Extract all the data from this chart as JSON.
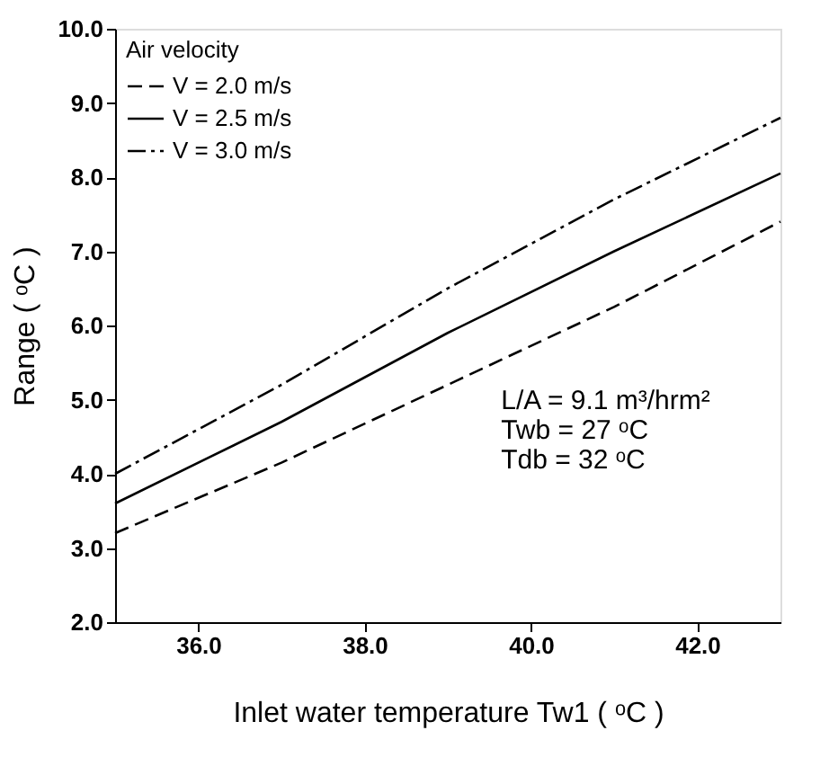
{
  "chart_data": {
    "type": "line",
    "xlabel": "Inlet water temperature Tw1 ( ᵒC )",
    "ylabel": "Range ( ᵒC )",
    "legend_title": "Air velocity",
    "x": [
      35,
      37,
      39,
      41,
      43
    ],
    "series": [
      {
        "name": "V = 2.0 m/s",
        "color": "#000000",
        "line_style": "dashed",
        "values": [
          3.2,
          4.15,
          5.2,
          6.25,
          7.4
        ]
      },
      {
        "name": "V = 2.5 m/s",
        "color": "#000000",
        "line_style": "solid",
        "values": [
          3.6,
          4.7,
          5.9,
          7.0,
          8.05
        ]
      },
      {
        "name": "V = 3.0 m/s",
        "color": "#000000",
        "line_style": "dashdot",
        "values": [
          4.0,
          5.2,
          6.5,
          7.7,
          8.8
        ]
      }
    ],
    "xlim": [
      35,
      43
    ],
    "xticks": [
      {
        "value": 36,
        "label": "36.0"
      },
      {
        "value": 38,
        "label": "38.0"
      },
      {
        "value": 40,
        "label": "40.0"
      },
      {
        "value": 42,
        "label": "42.0"
      }
    ],
    "ylim": [
      2,
      10
    ],
    "yticks": [
      {
        "value": 2,
        "label": "2.0"
      },
      {
        "value": 3,
        "label": "3.0"
      },
      {
        "value": 4,
        "label": "4.0"
      },
      {
        "value": 5,
        "label": "5.0"
      },
      {
        "value": 6,
        "label": "6.0"
      },
      {
        "value": 7,
        "label": "7.0"
      },
      {
        "value": 8,
        "label": "8.0"
      },
      {
        "value": 9,
        "label": "9.0"
      },
      {
        "value": 10,
        "label": "10.0"
      }
    ],
    "annotations": [
      "L/A = 9.1 m³/hrm²",
      "Twb = 27 ᵒC",
      "Tdb = 32 ᵒC"
    ],
    "grid": false,
    "legend": "top left",
    "marker": "none"
  }
}
